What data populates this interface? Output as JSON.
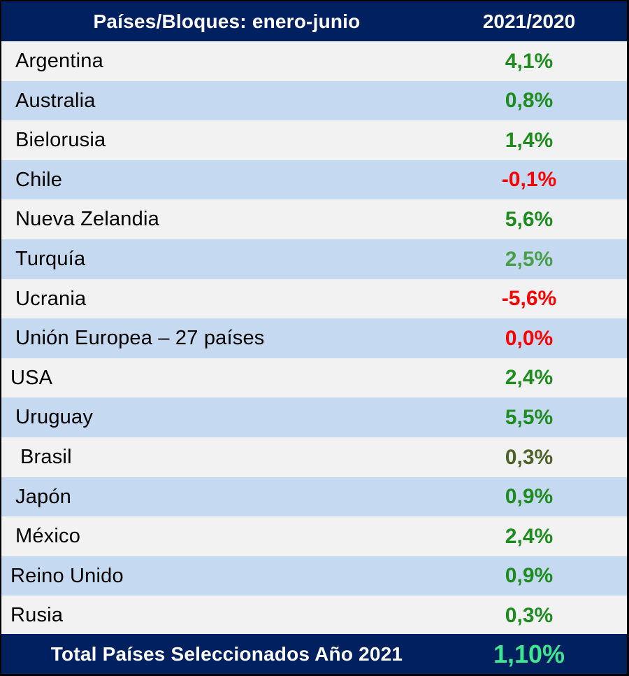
{
  "header": {
    "country_col": "Países/Bloques: enero-junio",
    "ratio_col": "2021/2020"
  },
  "rows": [
    {
      "name": "Argentina",
      "value": "4,1%",
      "color": "#1e8c1e"
    },
    {
      "name": "Australia",
      "value": "0,8%",
      "color": "#1e8c1e"
    },
    {
      "name": "Bielorusia",
      "value": "1,4%",
      "color": "#1e8c1e"
    },
    {
      "name": "Chile",
      "value": "-0,1%",
      "color": "#ff0000"
    },
    {
      "name": "Nueva Zelandia",
      "value": "5,6%",
      "color": "#1e8c1e"
    },
    {
      "name": "Turquía",
      "value": "2,5%",
      "color": "#4a9e4a"
    },
    {
      "name": "Ucrania",
      "value": "-5,6%",
      "color": "#ff0000"
    },
    {
      "name": "Unión Europea – 27 países",
      "value": "0,0%",
      "color": "#ff0000"
    },
    {
      "name": "USA",
      "value": "2,4%",
      "color": "#1e8c1e"
    },
    {
      "name": "Uruguay",
      "value": "5,5%",
      "color": "#1e8c1e"
    },
    {
      "name": "Brasil",
      "value": "0,3%",
      "color": "#4f6228"
    },
    {
      "name": "Japón",
      "value": "0,9%",
      "color": "#1e8c1e"
    },
    {
      "name": "México",
      "value": "2,4%",
      "color": "#1e8c1e"
    },
    {
      "name": "Reino Unido",
      "value": "0,9%",
      "color": "#1e8c1e"
    },
    {
      "name": "Rusia",
      "value": "0,3%",
      "color": "#1e8c1e"
    }
  ],
  "footer": {
    "label": "Total Países Seleccionados Año 2021",
    "value": "1,10%",
    "color": "#3ee68f"
  },
  "colors": {
    "header_bg": "#002060",
    "row_alt": "#c5d9f1",
    "row_light": "#f2f2f2"
  }
}
